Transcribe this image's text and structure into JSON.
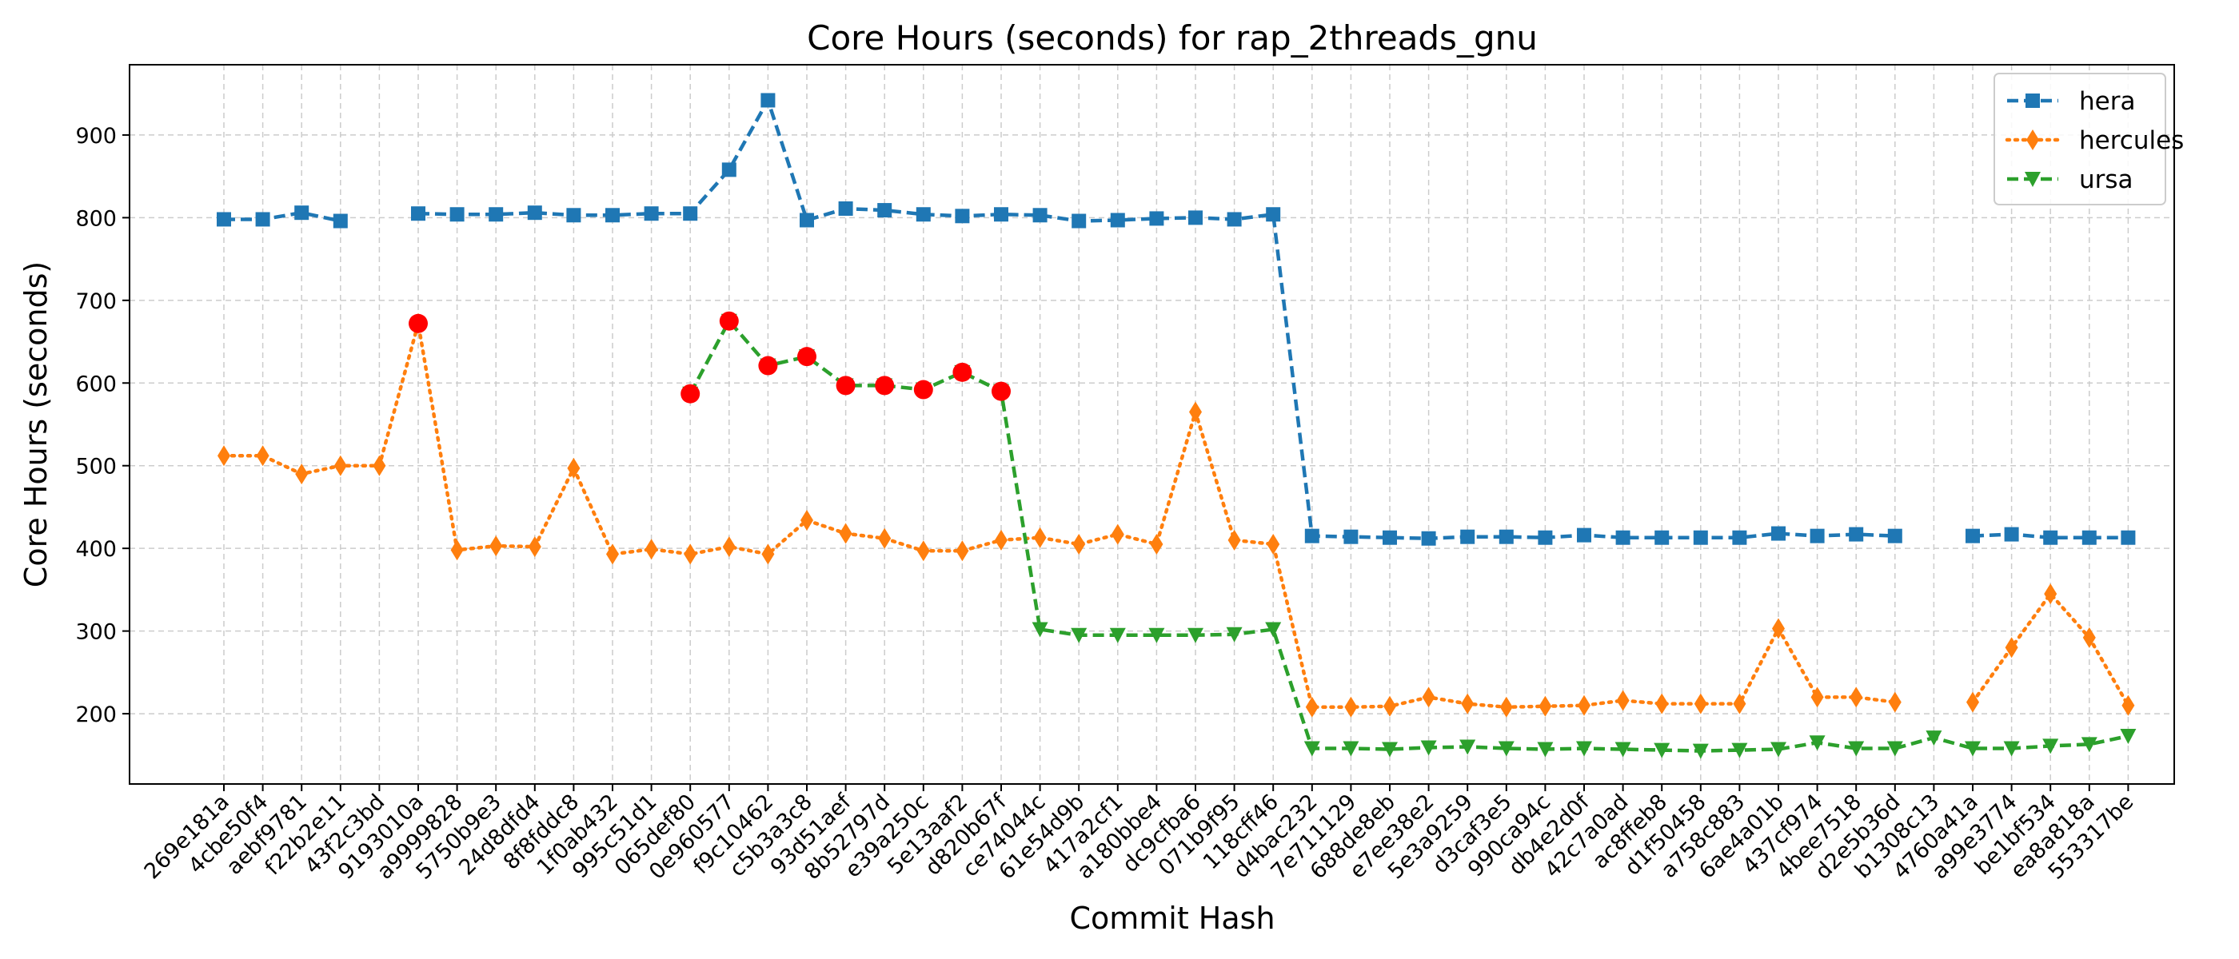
{
  "chart_data": {
    "type": "line",
    "title": "Core Hours (seconds) for rap_2threads_gnu",
    "xlabel": "Commit Hash",
    "ylabel": "Core Hours (seconds)",
    "ylim": [
      115,
      985
    ],
    "yticks": [
      200,
      300,
      400,
      500,
      600,
      700,
      800,
      900
    ],
    "grid": true,
    "legend_position": "top-right",
    "categories": [
      "269e181a",
      "4cbe50f4",
      "aebf9781",
      "f22b2e11",
      "43f2c3bd",
      "9193010a",
      "a9999828",
      "5750b9e3",
      "24d8dfd4",
      "8f8fddc8",
      "1f0ab432",
      "995c51d1",
      "065def80",
      "0e960577",
      "f9c10462",
      "c5b3a3c8",
      "93d51aef",
      "8b52797d",
      "e39a250c",
      "5e13aaf2",
      "d820b67f",
      "ce74044c",
      "61e54d9b",
      "417a2cf1",
      "a180bbe4",
      "dc9cfba6",
      "071b9f95",
      "118cff46",
      "d4bac232",
      "7e711129",
      "688de8eb",
      "e7ee38e2",
      "5e3a9259",
      "d3caf3e5",
      "990ca94c",
      "db4e2d0f",
      "42c7a0ad",
      "ac8ffeb8",
      "d1f50458",
      "a758c883",
      "6ae4a01b",
      "437cf974",
      "4bee7518",
      "d2e5b36d",
      "b1308c13",
      "4760a41a",
      "a99e3774",
      "be1bf534",
      "ea8a818a",
      "553317be"
    ],
    "series": [
      {
        "name": "hera",
        "color": "#1f77b4",
        "marker": "square",
        "linestyle": "dashed",
        "values": [
          798,
          798,
          806,
          796,
          null,
          805,
          804,
          804,
          806,
          803,
          803,
          805,
          805,
          858,
          942,
          797,
          811,
          809,
          804,
          802,
          804,
          803,
          796,
          797,
          799,
          800,
          798,
          804,
          415,
          414,
          413,
          412,
          414,
          414,
          413,
          416,
          413,
          413,
          413,
          413,
          418,
          415,
          417,
          415,
          null,
          415,
          417,
          413,
          413,
          413
        ]
      },
      {
        "name": "hercules",
        "color": "#ff7f0e",
        "marker": "diamond",
        "linestyle": "dotted",
        "values": [
          512,
          512,
          490,
          500,
          500,
          672,
          398,
          403,
          402,
          497,
          393,
          399,
          393,
          402,
          393,
          434,
          418,
          412,
          397,
          397,
          410,
          413,
          405,
          417,
          405,
          565,
          410,
          405,
          208,
          208,
          209,
          220,
          212,
          208,
          209,
          210,
          216,
          212,
          212,
          212,
          303,
          220,
          220,
          214,
          null,
          214,
          280,
          345,
          292,
          210
        ]
      },
      {
        "name": "ursa",
        "color": "#2ca02c",
        "marker": "triangle-down",
        "linestyle": "dashed",
        "values": [
          null,
          null,
          null,
          null,
          null,
          null,
          null,
          null,
          null,
          null,
          null,
          null,
          587,
          675,
          621,
          632,
          597,
          597,
          592,
          613,
          590,
          302,
          295,
          295,
          295,
          295,
          296,
          302,
          158,
          158,
          157,
          159,
          160,
          158,
          157,
          158,
          157,
          156,
          155,
          156,
          157,
          165,
          158,
          158,
          171,
          158,
          158,
          161,
          163,
          173
        ]
      }
    ],
    "highlighted_points": {
      "color": "#ff0000",
      "x": [
        "9193010a",
        "065def80",
        "0e960577",
        "f9c10462",
        "c5b3a3c8",
        "93d51aef",
        "8b52797d",
        "e39a250c",
        "5e13aaf2",
        "d820b67f"
      ],
      "y": [
        672,
        587,
        675,
        621,
        632,
        597,
        597,
        592,
        613,
        590
      ]
    }
  }
}
